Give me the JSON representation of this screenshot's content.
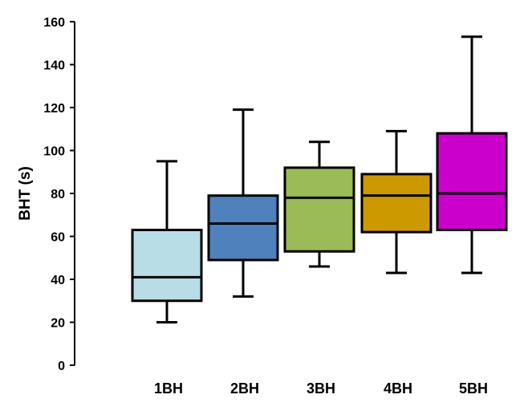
{
  "chart_data": {
    "type": "boxplot",
    "title": "",
    "xlabel": "",
    "ylabel": "BHT (s)",
    "ylim": [
      0,
      160
    ],
    "yticks": [
      0,
      20,
      40,
      60,
      80,
      100,
      120,
      140,
      160
    ],
    "grid": false,
    "categories": [
      "1BH",
      "2BH",
      "3BH",
      "4BH",
      "5BH"
    ],
    "boxes": [
      {
        "category": "1BH",
        "min": 20,
        "q1": 30,
        "median": 41,
        "q3": 63,
        "max": 95,
        "color": "#b8dde6"
      },
      {
        "category": "2BH",
        "min": 32,
        "q1": 49,
        "median": 66,
        "q3": 79,
        "max": 119,
        "color": "#4f81bd"
      },
      {
        "category": "3BH",
        "min": 46,
        "q1": 53,
        "median": 78,
        "q3": 92,
        "max": 104,
        "color": "#9bbb59"
      },
      {
        "category": "4BH",
        "min": 43,
        "q1": 62,
        "median": 79,
        "q3": 89,
        "max": 109,
        "color": "#cc9900"
      },
      {
        "category": "5BH",
        "min": 43,
        "q1": 63,
        "median": 80,
        "q3": 108,
        "max": 153,
        "color": "#cc00cc"
      }
    ]
  }
}
